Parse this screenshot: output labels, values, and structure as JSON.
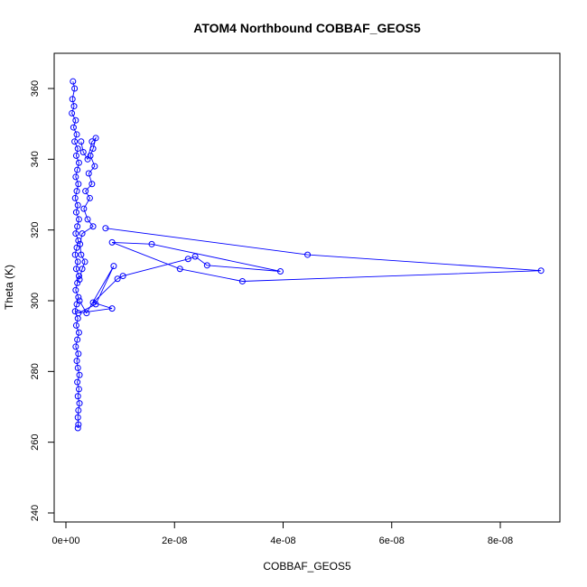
{
  "chart_data": {
    "type": "line",
    "title": "ATOM4 Northbound COBBAF_GEOS5",
    "xlabel": "COBBAF_GEOS5",
    "ylabel": "Theta (K)",
    "xlim": [
      0,
      9e-08
    ],
    "ylim": [
      240,
      370
    ],
    "x_ticks": [
      0,
      2e-08,
      4e-08,
      6e-08,
      8e-08
    ],
    "x_tick_labels": [
      "0e+00",
      "2e-08",
      "4e-08",
      "6e-08",
      "8e-08"
    ],
    "y_ticks": [
      240,
      260,
      280,
      300,
      320,
      340,
      360
    ],
    "y_tick_labels": [
      "240",
      "260",
      "280",
      "300",
      "320",
      "340",
      "360"
    ],
    "grid": false,
    "legend": "none",
    "color": "#0000ff",
    "markers": "open-circle",
    "series": [
      {
        "values": [
          [
            1.3e-09,
            362
          ],
          [
            1.6e-09,
            360
          ],
          [
            1.2e-09,
            357
          ],
          [
            1.5e-09,
            355
          ],
          [
            1.1e-09,
            353
          ],
          [
            1.8e-09,
            351
          ],
          [
            1.4e-09,
            349
          ],
          [
            2e-09,
            347
          ],
          [
            1.6e-09,
            345
          ],
          [
            2.2e-09,
            343
          ],
          [
            1.9e-09,
            341
          ],
          [
            2.4e-09,
            339
          ],
          [
            2.1e-09,
            337
          ],
          [
            1.8e-09,
            335
          ],
          [
            2.3e-09,
            333
          ],
          [
            2e-09,
            331
          ],
          [
            1.7e-09,
            329
          ],
          [
            2.2e-09,
            327
          ],
          [
            1.9e-09,
            325
          ],
          [
            2.4e-09,
            323
          ],
          [
            2.1e-09,
            321
          ],
          [
            1.8e-09,
            319
          ],
          [
            2.3e-09,
            317
          ],
          [
            2e-09,
            315
          ],
          [
            1.7e-09,
            313
          ],
          [
            2.2e-09,
            311
          ],
          [
            1.9e-09,
            309
          ],
          [
            2.4e-09,
            307
          ],
          [
            2.1e-09,
            305
          ],
          [
            1.8e-09,
            303
          ],
          [
            2.3e-09,
            301
          ],
          [
            2e-09,
            299
          ],
          [
            1.7e-09,
            297
          ],
          [
            2.2e-09,
            295
          ],
          [
            1.9e-09,
            293
          ],
          [
            2.4e-09,
            291
          ],
          [
            2.1e-09,
            289
          ],
          [
            1.8e-09,
            287
          ],
          [
            2.3e-09,
            285
          ],
          [
            2e-09,
            283
          ],
          [
            2.2e-09,
            281
          ],
          [
            2.5e-09,
            279
          ],
          [
            2.1e-09,
            277
          ],
          [
            2.4e-09,
            275
          ],
          [
            2.2e-09,
            273
          ],
          [
            2.5e-09,
            271
          ],
          [
            2.3e-09,
            269
          ],
          [
            2.2e-09,
            267
          ],
          [
            2.3e-09,
            265
          ],
          [
            2.2e-09,
            264
          ]
        ]
      },
      {
        "values": [
          [
            2.8e-09,
            345
          ],
          [
            3.2e-09,
            342
          ],
          [
            4e-09,
            340
          ],
          [
            4.8e-09,
            345
          ],
          [
            5.5e-09,
            346
          ],
          [
            5e-09,
            343
          ],
          [
            4.5e-09,
            341
          ],
          [
            5.3e-09,
            338
          ],
          [
            4.2e-09,
            336
          ],
          [
            4.8e-09,
            333
          ],
          [
            3.6e-09,
            331
          ],
          [
            4.4e-09,
            329
          ],
          [
            3.3e-09,
            326
          ],
          [
            4e-09,
            323
          ],
          [
            5e-09,
            321
          ],
          [
            3e-09,
            319
          ],
          [
            2.6e-09,
            316
          ],
          [
            2.8e-09,
            313
          ],
          [
            3.5e-09,
            311
          ],
          [
            3e-09,
            309
          ],
          [
            2.5e-09,
            306
          ]
        ]
      },
      {
        "values": [
          [
            7.3e-09,
            320.5
          ],
          [
            4.45e-08,
            313
          ],
          [
            8.75e-08,
            308.5
          ],
          [
            3.25e-08,
            305.5
          ],
          [
            2.1e-08,
            309
          ],
          [
            8.5e-09,
            316.5
          ],
          [
            1.58e-08,
            316
          ],
          [
            3.95e-08,
            308.3
          ],
          [
            2.6e-08,
            310
          ],
          [
            2.38e-08,
            312.5
          ],
          [
            2.25e-08,
            311.8
          ],
          [
            1.05e-08,
            307
          ],
          [
            9.5e-09,
            306.2
          ],
          [
            5e-09,
            299.5
          ],
          [
            8.5e-09,
            297.8
          ],
          [
            2.3e-09,
            296.5
          ],
          [
            5.5e-09,
            299.0
          ],
          [
            8.8e-09,
            309.8
          ],
          [
            3.8e-09,
            296.5
          ],
          [
            2.5e-09,
            300
          ]
        ]
      }
    ]
  }
}
